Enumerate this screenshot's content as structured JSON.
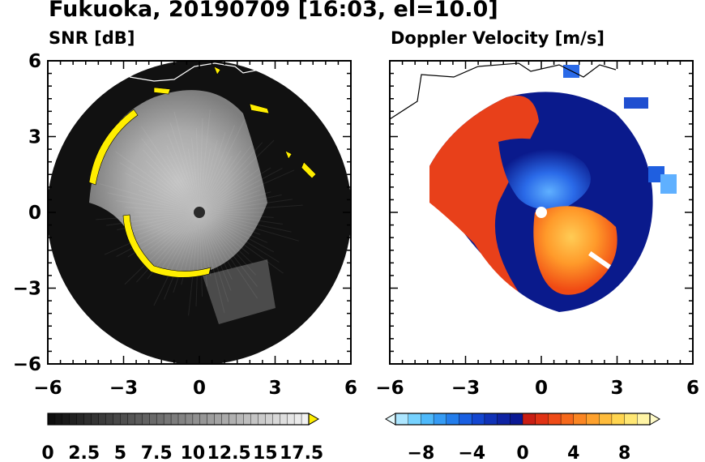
{
  "title": "Fukuoka, 20190709 [16:03, el=10.0]",
  "colors": {
    "snr_highlight": "#ffee00",
    "snr_disk": "#111111",
    "vel_negative_deep": "#0a1a8c",
    "vel_negative": "#1f5fe0",
    "vel_negative_light": "#5fb0ff",
    "vel_positive_deep": "#c8201a",
    "vel_positive": "#f04a14",
    "vel_positive_light": "#ffb23a"
  },
  "chart_data": [
    {
      "type": "heatmap",
      "panel": "snr",
      "title": "SNR [dB]",
      "xlim": [
        -6,
        6
      ],
      "ylim": [
        -6,
        6
      ],
      "xticks": [
        "−6",
        "−3",
        "0",
        "3",
        "6"
      ],
      "yticks": [
        "6",
        "3",
        "0",
        "−3",
        "−6"
      ],
      "colorbar": {
        "min": 0,
        "max": 18,
        "step": 0.5,
        "extend": "max",
        "labels": [
          "0",
          "2.5",
          "5",
          "7.5",
          "10",
          "12.5",
          "15",
          "17.5"
        ]
      }
    },
    {
      "type": "heatmap",
      "panel": "doppler",
      "title": "Doppler Velocity [m/s]",
      "xlim": [
        -6,
        6
      ],
      "ylim": [
        -6,
        6
      ],
      "xticks": [
        "−6",
        "−3",
        "0",
        "3",
        "6"
      ],
      "yticks": [],
      "colorbar": {
        "min": -10,
        "max": 10,
        "step": 1,
        "extend": "both",
        "labels": [
          "−8",
          "−4",
          "0",
          "4",
          "8"
        ]
      }
    }
  ]
}
